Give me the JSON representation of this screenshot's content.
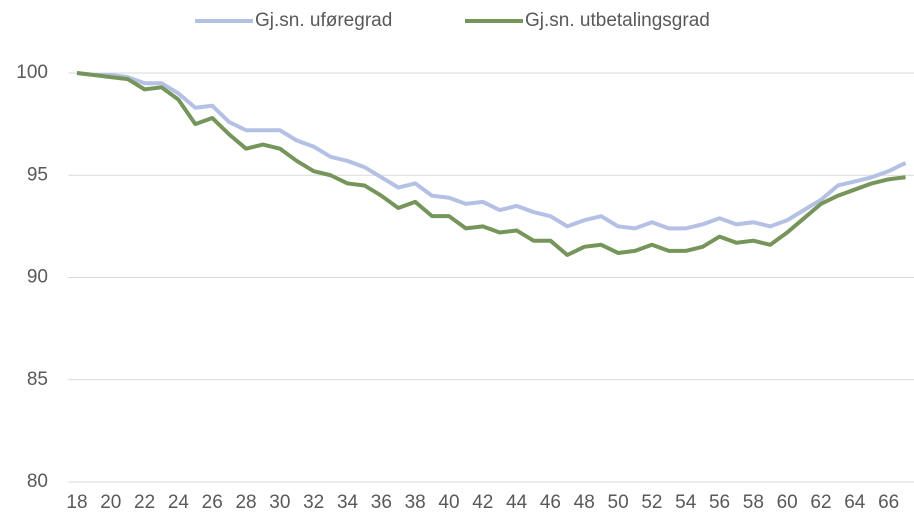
{
  "chart_data": {
    "type": "line",
    "categories": [
      "18",
      null,
      "20",
      null,
      "22",
      null,
      "24",
      null,
      "26",
      null,
      "28",
      null,
      "30",
      null,
      "32",
      null,
      "34",
      null,
      "36",
      null,
      "38",
      null,
      "40",
      null,
      "42",
      null,
      "44",
      null,
      "46",
      null,
      "48",
      null,
      "50",
      null,
      "52",
      null,
      "54",
      null,
      "56",
      null,
      "58",
      null,
      "60",
      null,
      "62",
      null,
      "64",
      null,
      "66",
      null
    ],
    "series": [
      {
        "name": "Gj.sn. uføregrad",
        "color": "#b4c0e4",
        "values": [
          100,
          99.9,
          99.9,
          99.8,
          99.5,
          99.5,
          99.0,
          98.3,
          98.4,
          97.6,
          97.2,
          97.2,
          97.2,
          96.7,
          96.4,
          95.9,
          95.7,
          95.4,
          94.9,
          94.4,
          94.6,
          94.0,
          93.9,
          93.6,
          93.7,
          93.3,
          93.5,
          93.2,
          93.0,
          92.5,
          92.8,
          93.0,
          92.5,
          92.4,
          92.7,
          92.4,
          92.4,
          92.6,
          92.9,
          92.6,
          92.7,
          92.5,
          92.8,
          93.3,
          93.8,
          94.5,
          94.7,
          94.9,
          95.2,
          95.6
        ]
      },
      {
        "name": "Gj.sn. utbetalingsgrad",
        "color": "#76955a",
        "values": [
          100,
          99.9,
          99.8,
          99.7,
          99.2,
          99.3,
          98.7,
          97.5,
          97.8,
          97.0,
          96.3,
          96.5,
          96.3,
          95.7,
          95.2,
          95.0,
          94.6,
          94.5,
          94.0,
          93.4,
          93.7,
          93.0,
          93.0,
          92.4,
          92.5,
          92.2,
          92.3,
          91.8,
          91.8,
          91.1,
          91.5,
          91.6,
          91.2,
          91.3,
          91.6,
          91.3,
          91.3,
          91.5,
          92.0,
          91.7,
          91.8,
          91.6,
          92.2,
          92.9,
          93.6,
          94.0,
          94.3,
          94.6,
          94.8,
          94.9
        ]
      }
    ],
    "ylim": [
      80,
      100
    ],
    "yticks": [
      80,
      85,
      90,
      95,
      100
    ],
    "grid": true,
    "legend": "top"
  }
}
